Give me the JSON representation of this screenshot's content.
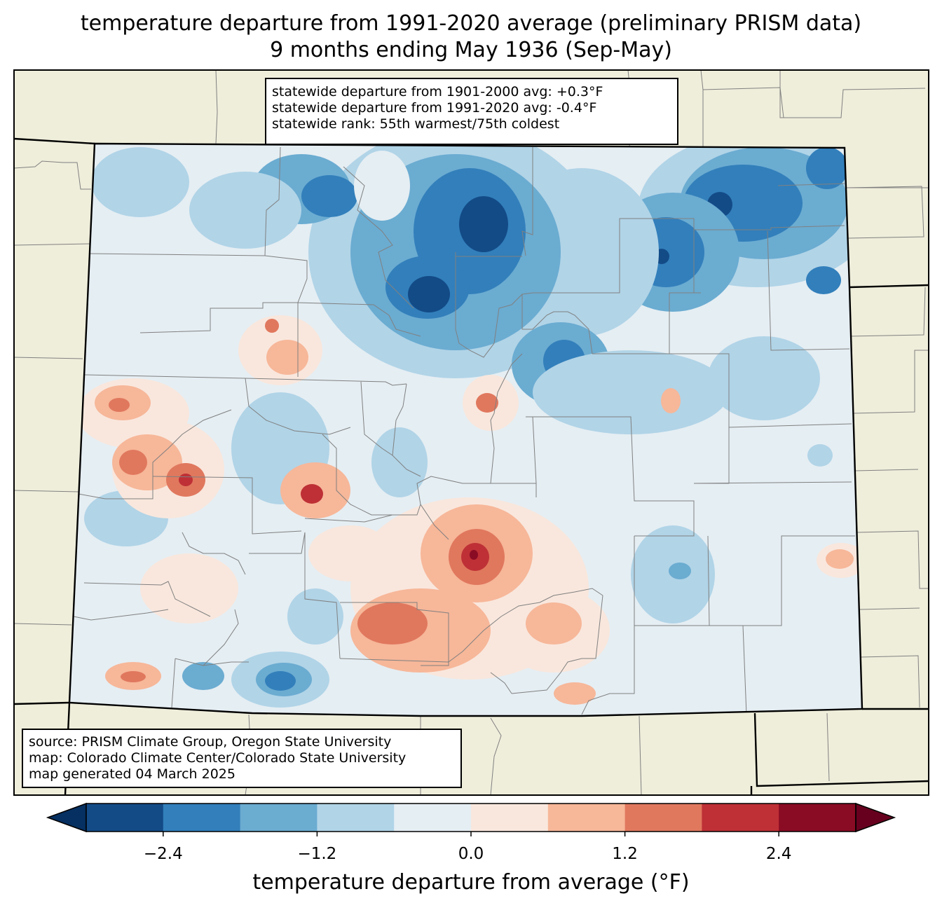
{
  "title": {
    "line1": "temperature departure from 1991-2020 average (preliminary PRISM data)",
    "line2": "9 months ending May 1936 (Sep-May)"
  },
  "stats_box": {
    "line1": "statewide departure from 1901-2000 avg: +0.3°F",
    "line2": "statewide departure from 1991-2020 avg: -0.4°F",
    "line3": "statewide rank: 55th warmest/75th coldest"
  },
  "source_box": {
    "line1": "source: PRISM Climate Group, Oregon State University",
    "line2": "map: Colorado Climate Center/Colorado State University",
    "line3": "map generated 04 March 2025"
  },
  "colorbar": {
    "label": "temperature departure from average (°F)",
    "ticks": [
      "−2.4",
      "−1.2",
      "0.0",
      "1.2",
      "2.4"
    ],
    "tick_values": [
      -2.4,
      -1.2,
      0.0,
      1.2,
      2.4
    ],
    "min": -3.0,
    "max": 3.0,
    "step": 0.6,
    "colors": [
      "#053061",
      "#134b87",
      "#327fbb",
      "#6bacd1",
      "#b1d4e7",
      "#e5eef3",
      "#f9e7dd",
      "#f7b799",
      "#e0785e",
      "#be3036",
      "#8a0b24",
      "#67001f"
    ]
  },
  "map": {
    "region": "Colorado",
    "background_color": "#efeedb",
    "county_line_color": "#808080",
    "state_line_color": "#000000"
  }
}
